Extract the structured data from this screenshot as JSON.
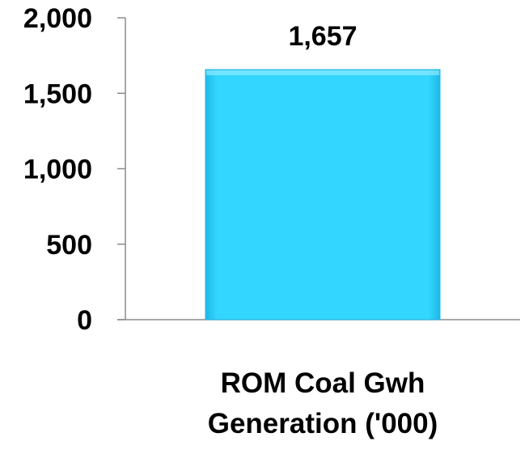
{
  "chart_data": {
    "type": "bar",
    "categories": [
      "ROM Coal Gwh Generation ('000)"
    ],
    "category_lines": [
      "ROM Coal Gwh",
      "Generation ('000)"
    ],
    "values": [
      1657
    ],
    "data_labels": [
      "1,657"
    ],
    "ylim": [
      0,
      2000
    ],
    "yticks": [
      0,
      500,
      1000,
      1500,
      2000
    ],
    "ytick_labels": [
      "0",
      "500",
      "1,000",
      "1,500",
      "2,000"
    ],
    "grid": false,
    "legend": "none",
    "colors": {
      "bar_fill": "#33d6ff",
      "bar_edge_light": "#8fe9ff",
      "bar_edge_dark": "#1fb8e6",
      "axis": "#8c8c8c",
      "text": "#000000"
    }
  }
}
